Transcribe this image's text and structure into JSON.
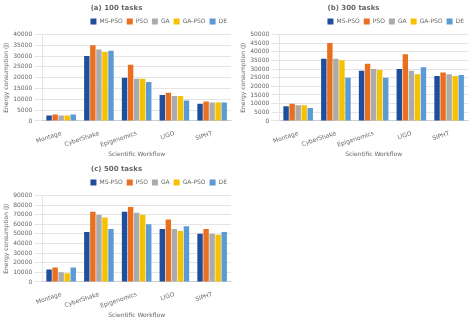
{
  "chart_data": [
    {
      "type": "bar",
      "title": "(a) 100 tasks",
      "categories": [
        "Montage",
        "CyberShake",
        "Epigenomics",
        "LIGO",
        "SIPHT"
      ],
      "series": [
        {
          "name": "MS-PSO",
          "color": "#1f4e9c",
          "values": [
            2500,
            30000,
            20000,
            12000,
            8000
          ]
        },
        {
          "name": "PSO",
          "color": "#e87020",
          "values": [
            3000,
            35000,
            26000,
            13000,
            9000
          ]
        },
        {
          "name": "GA",
          "color": "#ababab",
          "values": [
            2500,
            33000,
            19500,
            11500,
            8500
          ]
        },
        {
          "name": "GA-PSO",
          "color": "#f5c100",
          "values": [
            2500,
            32000,
            19500,
            11500,
            8500
          ]
        },
        {
          "name": "DE",
          "color": "#5b9bd5",
          "values": [
            3000,
            32500,
            18000,
            9500,
            8500
          ]
        }
      ],
      "xlabel": "Scientific Workflow",
      "ylabel": "Energy consumption (J)",
      "ylim": [
        0,
        40000
      ],
      "yticks": [
        0,
        5000,
        10000,
        15000,
        20000,
        25000,
        30000,
        35000,
        40000
      ],
      "grid": true,
      "legend": "upper right"
    },
    {
      "type": "bar",
      "title": "(b) 300 tasks",
      "categories": [
        "Montage",
        "CyberShake",
        "Epigenomics",
        "LIGO",
        "SIPHT"
      ],
      "series": [
        {
          "name": "MS-PSO",
          "color": "#1f4e9c",
          "values": [
            8500,
            36000,
            29000,
            30000,
            26000
          ]
        },
        {
          "name": "PSO",
          "color": "#e87020",
          "values": [
            10000,
            45000,
            33000,
            38500,
            28000
          ]
        },
        {
          "name": "GA",
          "color": "#ababab",
          "values": [
            9000,
            36000,
            30000,
            29000,
            27000
          ]
        },
        {
          "name": "GA-PSO",
          "color": "#f5c100",
          "values": [
            9000,
            35000,
            29500,
            27000,
            26000
          ]
        },
        {
          "name": "DE",
          "color": "#5b9bd5",
          "values": [
            7500,
            25000,
            25000,
            31000,
            26500
          ]
        }
      ],
      "xlabel": "Scientific Workflow",
      "ylabel": "Energy consumption (J)",
      "ylim": [
        0,
        50000
      ],
      "yticks": [
        0,
        5000,
        10000,
        15000,
        20000,
        25000,
        30000,
        35000,
        40000,
        45000,
        50000
      ],
      "grid": true,
      "legend": "upper right"
    },
    {
      "type": "bar",
      "title": "(c) 500 tasks",
      "categories": [
        "Montage",
        "CyberShake",
        "Epigenomics",
        "LIGO",
        "SIPHT"
      ],
      "series": [
        {
          "name": "MS-PSO",
          "color": "#1f4e9c",
          "values": [
            13000,
            52000,
            73000,
            55000,
            50000
          ]
        },
        {
          "name": "PSO",
          "color": "#e87020",
          "values": [
            15000,
            73000,
            78000,
            65000,
            55000
          ]
        },
        {
          "name": "GA",
          "color": "#ababab",
          "values": [
            10000,
            70000,
            72000,
            55000,
            50000
          ]
        },
        {
          "name": "GA-PSO",
          "color": "#f5c100",
          "values": [
            9000,
            67000,
            70000,
            53000,
            49000
          ]
        },
        {
          "name": "DE",
          "color": "#5b9bd5",
          "values": [
            15000,
            55000,
            60000,
            58000,
            52000
          ]
        }
      ],
      "xlabel": "Scientific Workflow",
      "ylabel": "Energy consumption (J)",
      "ylim": [
        0,
        90000
      ],
      "yticks": [
        0,
        10000,
        20000,
        30000,
        40000,
        50000,
        60000,
        70000,
        80000,
        90000
      ],
      "grid": true,
      "legend": "upper right"
    }
  ]
}
